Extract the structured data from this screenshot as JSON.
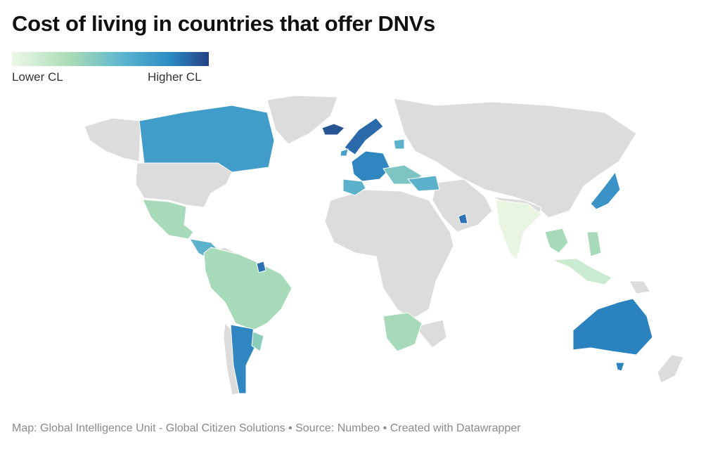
{
  "title": "Cost of living in countries that offer DNVs",
  "legend": {
    "low": "Lower CL",
    "high": "Higher CL"
  },
  "footer": "Map: Global Intelligence Unit - Global Citizen Solutions  • Source: Numbeo • Created with Datawrapper"
}
